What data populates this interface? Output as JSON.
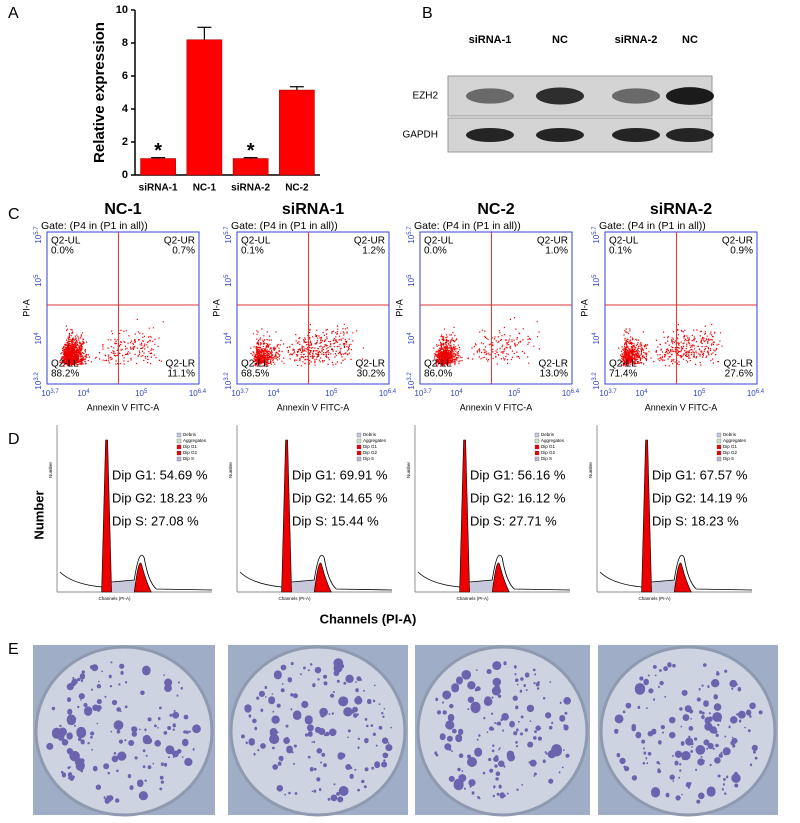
{
  "panels": [
    "A",
    "B",
    "C",
    "D",
    "E"
  ],
  "chart_data": {
    "type": "bar",
    "y_label": "Relative expression",
    "categories": [
      "siRNA-1",
      "NC-1",
      "siRNA-2",
      "NC-2"
    ],
    "values": [
      1.0,
      8.2,
      1.0,
      5.15
    ],
    "errors": [
      0.05,
      0.75,
      0.05,
      0.2
    ],
    "annotations": [
      "*",
      null,
      "*",
      null
    ],
    "color": "#ff0000",
    "ylim": [
      0,
      10
    ],
    "yticks": [
      0,
      2,
      4,
      6,
      8,
      10
    ]
  },
  "blot": {
    "lanes": [
      "siRNA-1",
      "NC",
      "siRNA-2",
      "NC"
    ],
    "rows": [
      "EZH2",
      "GAPDH"
    ]
  },
  "flow": {
    "gate": "Gate: (P4 in (P1 in all))",
    "x_label": "Annexin V FITC-A",
    "y_label": "PI-A",
    "tick_base": "10",
    "x_exponents": [
      "3.7",
      "4",
      "5",
      "6.4"
    ],
    "y_exponents": [
      "3.2",
      "4",
      "5",
      "5.7"
    ],
    "quadrant_names": [
      "Q2-UL",
      "Q2-UR",
      "Q2-LL",
      "Q2-LR"
    ],
    "plots": [
      {
        "title": "NC-1",
        "quadrants": [
          "0.0%",
          "0.7%",
          "88.2%",
          "11.1%"
        ]
      },
      {
        "title": "siRNA-1",
        "quadrants": [
          "0.1%",
          "1.2%",
          "68.5%",
          "30.2%"
        ]
      },
      {
        "title": "NC-2",
        "quadrants": [
          "0.0%",
          "1.0%",
          "86.0%",
          "13.0%"
        ]
      },
      {
        "title": "siRNA-2",
        "quadrants": [
          "0.1%",
          "0.9%",
          "71.4%",
          "27.6%"
        ]
      }
    ]
  },
  "cycle": {
    "x_label": "Channels (PI-A)",
    "y_label": "Number",
    "legend": [
      "Debris",
      "Aggregates",
      "Dip G1",
      "Dip G2",
      "Dip S"
    ],
    "plots": [
      {
        "lines": [
          "Dip G1: 54.69 %",
          "Dip G2: 18.23 %",
          "Dip S: 27.08 %"
        ]
      },
      {
        "lines": [
          "Dip G1: 69.91 %",
          "Dip G2: 14.65 %",
          "Dip S: 15.44 %"
        ]
      },
      {
        "lines": [
          "Dip G1: 56.16 %",
          "Dip G2: 16.12 %",
          "Dip S: 27.71 %"
        ]
      },
      {
        "lines": [
          "Dip G1: 67.57 %",
          "Dip G2: 14.19 %",
          "Dip S: 18.23 %"
        ]
      }
    ]
  }
}
